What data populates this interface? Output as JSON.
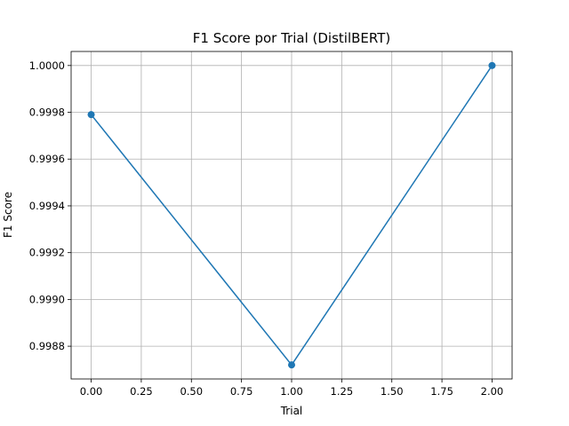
{
  "chart_data": {
    "type": "line",
    "title": "F1 Score por Trial (DistilBERT)",
    "xlabel": "Trial",
    "ylabel": "F1 Score",
    "x": [
      0,
      1,
      2
    ],
    "series": [
      {
        "values": [
          0.99979,
          0.99872,
          1.0
        ],
        "color": "#1f77b4",
        "marker": "circle"
      }
    ],
    "xlim": [
      -0.1,
      2.1
    ],
    "ylim": [
      0.99866,
      1.00006
    ],
    "xticks": [
      0.0,
      0.25,
      0.5,
      0.75,
      1.0,
      1.25,
      1.5,
      1.75,
      2.0
    ],
    "xtick_labels": [
      "0.00",
      "0.25",
      "0.50",
      "0.75",
      "1.00",
      "1.25",
      "1.50",
      "1.75",
      "2.00"
    ],
    "yticks": [
      0.9988,
      0.999,
      0.9992,
      0.9994,
      0.9996,
      0.9998,
      1.0
    ],
    "ytick_labels": [
      "0.9988",
      "0.9990",
      "0.9992",
      "0.9994",
      "0.9996",
      "0.9998",
      "1.0000"
    ],
    "grid": true,
    "legend": false
  }
}
